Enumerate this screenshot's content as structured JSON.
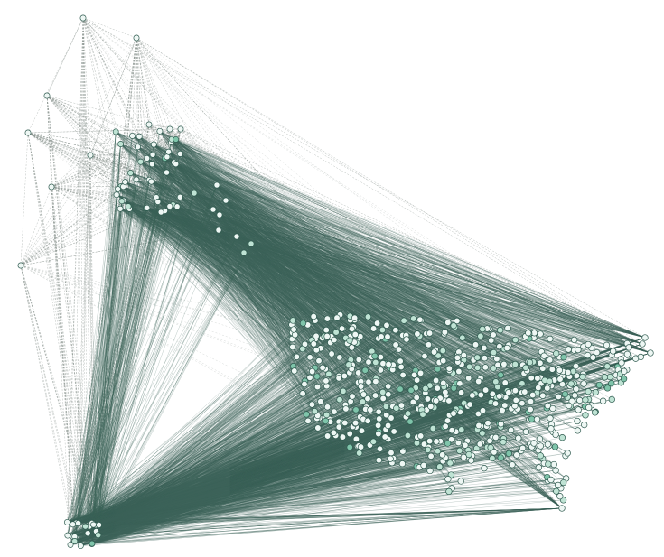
{
  "diagram": {
    "type": "network-graph",
    "description_visible_text": [],
    "colors": {
      "background": "#ffffff",
      "edge_dense": "#3b6358",
      "edge_sparse": "#8a9590",
      "node_fill_light": "#eef7f4",
      "node_fill_mid": "#bfe3d4",
      "node_fill_dark": "#7fc4aa",
      "node_stroke": "#2f5a4f"
    },
    "legend": null,
    "title": null
  }
}
